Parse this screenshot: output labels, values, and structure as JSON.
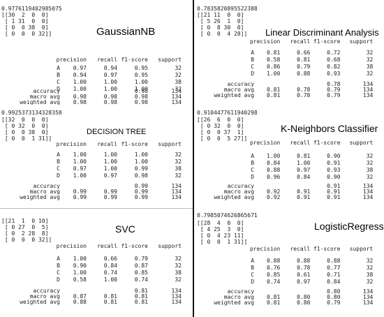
{
  "panels": [
    {
      "accuracy": "0.9776119402985075",
      "matrix": [
        "[[30  2  0  0]",
        " [ 1 31  0  0]",
        " [ 0  0 38  0]",
        " [ 0  0  0 32]]"
      ],
      "title": "GaussianNB",
      "header": [
        "precision",
        "recall",
        "f1-score",
        "support"
      ],
      "rows": [
        {
          "label": "A",
          "p": "0.97",
          "r": "0.94",
          "f": "0.95",
          "s": "32"
        },
        {
          "label": "B",
          "p": "0.94",
          "r": "0.97",
          "f": "0.95",
          "s": "32"
        },
        {
          "label": "C",
          "p": "1.00",
          "r": "1.00",
          "f": "1.00",
          "s": "38"
        },
        {
          "label": "D",
          "p": "1.00",
          "r": "1.00",
          "f": "1.00",
          "s": "32"
        }
      ],
      "summary": [
        {
          "label": "accuracy",
          "p": "",
          "r": "",
          "f": "0.98",
          "s": "134"
        },
        {
          "label": "macro avg",
          "p": "0.98",
          "r": "0.98",
          "f": "0.98",
          "s": "134"
        },
        {
          "label": "weighted avg",
          "p": "0.98",
          "r": "0.98",
          "f": "0.98",
          "s": "134"
        }
      ]
    },
    {
      "accuracy": "0.7835820895522388",
      "matrix": [
        "[[21 11  0  0]",
        " [ 5 26  1  0]",
        " [ 0  8 30  0]",
        " [ 0  0  4 28]]"
      ],
      "title": "Linear Discriminant Analysis",
      "header": [
        "precision",
        "recall",
        "f1-score",
        "support"
      ],
      "rows": [
        {
          "label": "A",
          "p": "0.81",
          "r": "0.66",
          "f": "0.72",
          "s": "32"
        },
        {
          "label": "B",
          "p": "0.58",
          "r": "0.81",
          "f": "0.68",
          "s": "32"
        },
        {
          "label": "C",
          "p": "0.86",
          "r": "0.79",
          "f": "0.82",
          "s": "38"
        },
        {
          "label": "D",
          "p": "1.00",
          "r": "0.88",
          "f": "0.93",
          "s": "32"
        }
      ],
      "summary": [
        {
          "label": "accuracy",
          "p": "",
          "r": "",
          "f": "0.78",
          "s": "134"
        },
        {
          "label": "macro avg",
          "p": "0.81",
          "r": "0.78",
          "f": "0.79",
          "s": "134"
        },
        {
          "label": "weighted avg",
          "p": "0.81",
          "r": "0.78",
          "f": "0.79",
          "s": "134"
        }
      ]
    },
    {
      "accuracy": "0.9925373134328358",
      "matrix": [
        "[[32  0  0  0]",
        " [ 0 32  0  0]",
        " [ 0  0 38  0]",
        " [ 0  0  1 31]]"
      ],
      "title": "DECISION TREE",
      "header": [
        "precision",
        "recall",
        "f1-score",
        "support"
      ],
      "rows": [
        {
          "label": "A",
          "p": "1.00",
          "r": "1.00",
          "f": "1.00",
          "s": "32"
        },
        {
          "label": "B",
          "p": "1.00",
          "r": "1.00",
          "f": "1.00",
          "s": "32"
        },
        {
          "label": "C",
          "p": "0.97",
          "r": "1.00",
          "f": "0.99",
          "s": "38"
        },
        {
          "label": "D",
          "p": "1.00",
          "r": "0.97",
          "f": "0.98",
          "s": "32"
        }
      ],
      "summary": [
        {
          "label": "accuracy",
          "p": "",
          "r": "",
          "f": "0.99",
          "s": "134"
        },
        {
          "label": "macro avg",
          "p": "0.99",
          "r": "0.99",
          "f": "0.99",
          "s": "134"
        },
        {
          "label": "weighted avg",
          "p": "0.99",
          "r": "0.99",
          "f": "0.99",
          "s": "134"
        }
      ]
    },
    {
      "accuracy": "0.9104477611940298",
      "matrix": [
        "[[26  6  0  0]",
        " [ 0 32  0  0]",
        " [ 0  0 37  1]",
        " [ 0  0  5 27]]"
      ],
      "title": "K-Neighbors Classifier",
      "header": [
        "precision",
        "recall",
        "f1-score",
        "support"
      ],
      "rows": [
        {
          "label": "A",
          "p": "1.00",
          "r": "0.81",
          "f": "0.90",
          "s": "32"
        },
        {
          "label": "B",
          "p": "0.84",
          "r": "1.00",
          "f": "0.91",
          "s": "32"
        },
        {
          "label": "C",
          "p": "0.88",
          "r": "0.97",
          "f": "0.93",
          "s": "38"
        },
        {
          "label": "D",
          "p": "0.96",
          "r": "0.84",
          "f": "0.90",
          "s": "32"
        }
      ],
      "summary": [
        {
          "label": "accuracy",
          "p": "",
          "r": "",
          "f": "0.91",
          "s": "134"
        },
        {
          "label": "macro avg",
          "p": "0.92",
          "r": "0.91",
          "f": "0.91",
          "s": "134"
        },
        {
          "label": "weighted avg",
          "p": "0.92",
          "r": "0.91",
          "f": "0.91",
          "s": "134"
        }
      ]
    },
    {
      "accuracy": "",
      "matrix": [
        "[[21  1  0 10]",
        " [ 0 27  0  5]",
        " [ 0  2 28  8]",
        " [ 0  0  0 32]]"
      ],
      "title": "SVC",
      "header": [
        "precision",
        "recall",
        "f1-score",
        "support"
      ],
      "rows": [
        {
          "label": "A",
          "p": "1.00",
          "r": "0.66",
          "f": "0.79",
          "s": "32"
        },
        {
          "label": "B",
          "p": "0.90",
          "r": "0.84",
          "f": "0.87",
          "s": "32"
        },
        {
          "label": "C",
          "p": "1.00",
          "r": "0.74",
          "f": "0.85",
          "s": "38"
        },
        {
          "label": "D",
          "p": "0.58",
          "r": "1.00",
          "f": "0.74",
          "s": "32"
        }
      ],
      "summary": [
        {
          "label": "accuracy",
          "p": "",
          "r": "",
          "f": "0.81",
          "s": "134"
        },
        {
          "label": "macro avg",
          "p": "0.87",
          "r": "0.81",
          "f": "0.81",
          "s": "134"
        },
        {
          "label": "weighted avg",
          "p": "0.88",
          "r": "0.81",
          "f": "0.81",
          "s": "134"
        }
      ]
    },
    {
      "accuracy": "0.7985074626865671",
      "matrix": [
        "[[28  4  0  0]",
        " [ 4 25  3  0]",
        " [ 0  4 23 11]",
        " [ 0  0  1 31]]"
      ],
      "title": "LogisticRegression",
      "header": [
        "precision",
        "recall",
        "f1-score",
        "support"
      ],
      "rows": [
        {
          "label": "A",
          "p": "0.88",
          "r": "0.88",
          "f": "0.88",
          "s": "32"
        },
        {
          "label": "B",
          "p": "0.76",
          "r": "0.78",
          "f": "0.77",
          "s": "32"
        },
        {
          "label": "C",
          "p": "0.85",
          "r": "0.61",
          "f": "0.71",
          "s": "38"
        },
        {
          "label": "D",
          "p": "0.74",
          "r": "0.97",
          "f": "0.84",
          "s": "32"
        }
      ],
      "summary": [
        {
          "label": "accuracy",
          "p": "",
          "r": "",
          "f": "0.80",
          "s": "134"
        },
        {
          "label": "macro avg",
          "p": "0.81",
          "r": "0.80",
          "f": "0.80",
          "s": "134"
        },
        {
          "label": "weighted avg",
          "p": "0.81",
          "r": "0.80",
          "f": "0.79",
          "s": "134"
        }
      ]
    }
  ]
}
